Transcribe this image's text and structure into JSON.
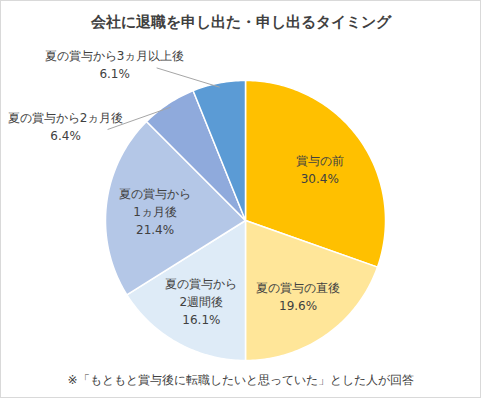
{
  "chart_data": {
    "type": "pie",
    "title": "会社に退職を申し出た・申し出るタイミング",
    "categories": [
      "賞与の前",
      "夏の賞与の直後",
      "夏の賞与から\n2週間後",
      "夏の賞与から\n1ヵ月後",
      "夏の賞与から2ヵ月後",
      "夏の賞与から3ヵ月以上後"
    ],
    "values": [
      30.4,
      19.6,
      16.1,
      21.4,
      6.4,
      6.1
    ],
    "value_labels": [
      "30.4%",
      "19.6%",
      "16.1%",
      "21.4%",
      "6.4%",
      "6.1%"
    ],
    "colors": [
      "#FFC000",
      "#FFE699",
      "#DEEBF7",
      "#B4C7E7",
      "#8FAADC",
      "#5B9BD5"
    ],
    "data_labels": true,
    "annotations": [
      "※「もともと賞与後に転職したいと思っていた」とした人が回答"
    ]
  }
}
